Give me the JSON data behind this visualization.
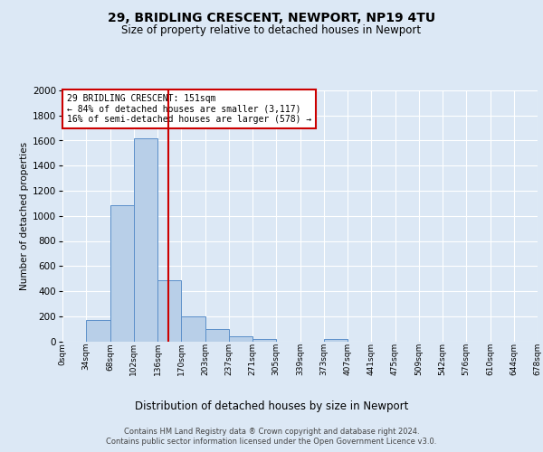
{
  "title1": "29, BRIDLING CRESCENT, NEWPORT, NP19 4TU",
  "title2": "Size of property relative to detached houses in Newport",
  "xlabel": "Distribution of detached houses by size in Newport",
  "ylabel": "Number of detached properties",
  "footer1": "Contains HM Land Registry data ® Crown copyright and database right 2024.",
  "footer2": "Contains public sector information licensed under the Open Government Licence v3.0.",
  "bin_labels": [
    "0sqm",
    "34sqm",
    "68sqm",
    "102sqm",
    "136sqm",
    "170sqm",
    "203sqm",
    "237sqm",
    "271sqm",
    "305sqm",
    "339sqm",
    "373sqm",
    "407sqm",
    "441sqm",
    "475sqm",
    "509sqm",
    "542sqm",
    "576sqm",
    "610sqm",
    "644sqm",
    "678sqm"
  ],
  "bar_values": [
    0,
    170,
    1085,
    1620,
    485,
    200,
    100,
    42,
    20,
    0,
    0,
    18,
    0,
    0,
    0,
    0,
    0,
    0,
    0,
    0
  ],
  "bar_color": "#b8cfe8",
  "bar_edge_color": "#5b8fc9",
  "vline_color": "#cc0000",
  "vline_pos": 4.44,
  "ylim": [
    0,
    2000
  ],
  "yticks": [
    0,
    200,
    400,
    600,
    800,
    1000,
    1200,
    1400,
    1600,
    1800,
    2000
  ],
  "annotation_text": "29 BRIDLING CRESCENT: 151sqm\n← 84% of detached houses are smaller (3,117)\n16% of semi-detached houses are larger (578) →",
  "annotation_box_color": "#ffffff",
  "annotation_box_edge": "#cc0000",
  "bg_color": "#dce8f5",
  "plot_bg_color": "#dce8f5",
  "title1_fontsize": 10,
  "title2_fontsize": 8.5,
  "xlabel_fontsize": 8.5,
  "ylabel_fontsize": 7.5,
  "ytick_fontsize": 7.5,
  "xtick_fontsize": 6.5,
  "footer_fontsize": 6,
  "annot_fontsize": 7
}
